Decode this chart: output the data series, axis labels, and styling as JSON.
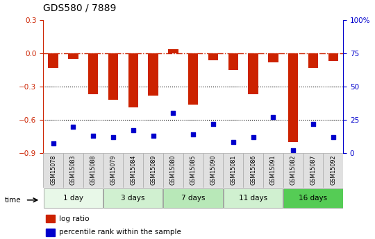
{
  "title": "GDS580 / 7889",
  "samples": [
    "GSM15078",
    "GSM15083",
    "GSM15088",
    "GSM15079",
    "GSM15084",
    "GSM15089",
    "GSM15080",
    "GSM15085",
    "GSM15090",
    "GSM15081",
    "GSM15086",
    "GSM15091",
    "GSM15082",
    "GSM15087",
    "GSM15092"
  ],
  "log_ratio": [
    -0.13,
    -0.05,
    -0.37,
    -0.42,
    -0.49,
    -0.38,
    0.04,
    -0.46,
    -0.06,
    -0.15,
    -0.37,
    -0.08,
    -0.8,
    -0.13,
    -0.07
  ],
  "percentile_rank": [
    7,
    20,
    13,
    12,
    17,
    13,
    30,
    14,
    22,
    8,
    12,
    27,
    2,
    22,
    12
  ],
  "groups": [
    {
      "label": "1 day",
      "start": 0,
      "end": 3,
      "color": "#e8f8e8"
    },
    {
      "label": "3 days",
      "start": 3,
      "end": 6,
      "color": "#d0f0d0"
    },
    {
      "label": "7 days",
      "start": 6,
      "end": 9,
      "color": "#b8e8b8"
    },
    {
      "label": "11 days",
      "start": 9,
      "end": 12,
      "color": "#d0f0d0"
    },
    {
      "label": "16 days",
      "start": 12,
      "end": 15,
      "color": "#55cc55"
    }
  ],
  "ylim_left": [
    -0.9,
    0.3
  ],
  "ylim_right": [
    0,
    100
  ],
  "yticks_left": [
    -0.9,
    -0.6,
    -0.3,
    0,
    0.3
  ],
  "yticks_right": [
    0,
    25,
    50,
    75,
    100
  ],
  "bar_color": "#cc2200",
  "dot_color": "#0000cc",
  "hline_color": "#cc2200",
  "grid_color": "#000000",
  "right_axis_color": "#0000cc",
  "left_axis_color": "#cc2200",
  "bar_width": 0.5,
  "figsize": [
    5.4,
    3.45
  ],
  "dpi": 100
}
